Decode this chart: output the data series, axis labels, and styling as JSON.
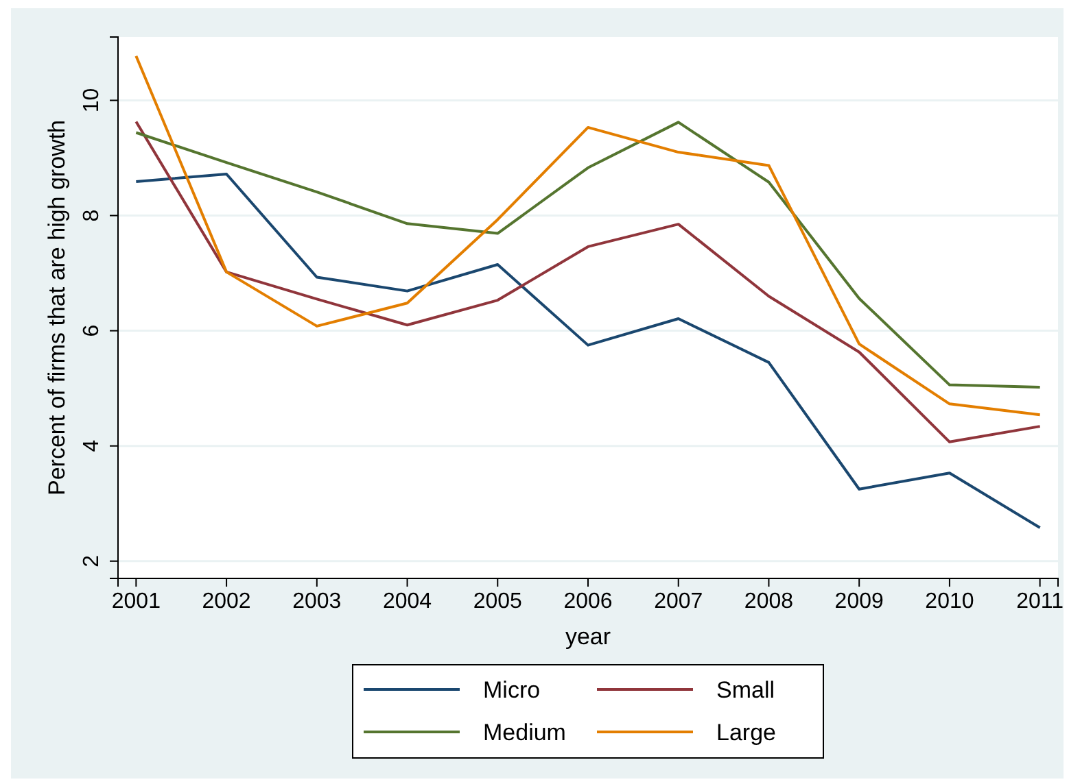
{
  "chart_data": {
    "type": "line",
    "xlabel": "year",
    "ylabel": "Percent of firms that are high growth",
    "x": [
      2001,
      2002,
      2003,
      2004,
      2005,
      2006,
      2007,
      2008,
      2009,
      2010,
      2011
    ],
    "series": [
      {
        "name": "Micro",
        "color": "#1a476f",
        "values": [
          8.59,
          8.72,
          6.93,
          6.69,
          7.15,
          5.75,
          6.21,
          5.45,
          3.25,
          3.53,
          2.58
        ]
      },
      {
        "name": "Small",
        "color": "#90353b",
        "values": [
          9.63,
          7.02,
          6.55,
          6.1,
          6.53,
          7.46,
          7.85,
          6.6,
          5.63,
          4.07,
          4.34
        ]
      },
      {
        "name": "Medium",
        "color": "#55752f",
        "values": [
          9.44,
          8.92,
          8.41,
          7.86,
          7.69,
          8.83,
          9.62,
          8.58,
          6.56,
          5.06,
          5.02
        ]
      },
      {
        "name": "Large",
        "color": "#e37e00",
        "values": [
          10.77,
          7.02,
          6.08,
          6.48,
          7.93,
          9.53,
          9.1,
          8.87,
          5.77,
          4.73,
          4.54
        ]
      }
    ],
    "xlim": [
      2000.8,
      2011.2
    ],
    "xticks": [
      2001,
      2002,
      2003,
      2004,
      2005,
      2006,
      2007,
      2008,
      2009,
      2010,
      2011
    ],
    "ylim": [
      1.7,
      11.1
    ],
    "yticks": [
      2,
      4,
      6,
      8,
      10
    ],
    "grid": "y",
    "legend": "bottom",
    "marker": "none",
    "line_style": "solid"
  }
}
